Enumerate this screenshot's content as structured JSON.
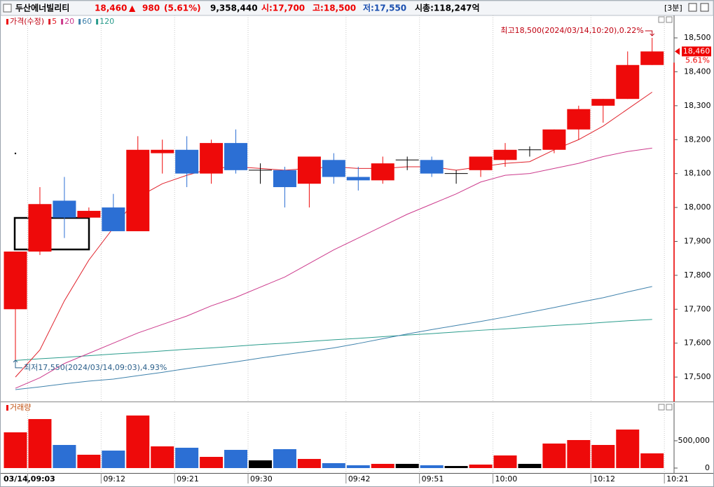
{
  "header": {
    "name": "두산에너빌리티",
    "price": "18,460",
    "arrow": "▲",
    "change": "980",
    "change_pct": "(5.61%)",
    "volume": "9,358,440",
    "open": "시:17,700",
    "high": "고:18,500",
    "low": "저:17,550",
    "market_cap": "시총:118,247억",
    "interval": "[3분]"
  },
  "chart_data": [
    {
      "type": "candlestick",
      "legend_title": "가격(수정)",
      "open": [
        17700,
        17870,
        18020,
        17970,
        18000,
        17930,
        18160,
        18170,
        18100,
        18190,
        18110,
        18110,
        18070,
        18140,
        18090,
        18080,
        18140,
        18140,
        18100,
        18110,
        18140,
        18170,
        18170,
        18230,
        18300,
        18320,
        18420,
        null
      ],
      "high": [
        17870,
        18060,
        18090,
        18000,
        18040,
        18210,
        18200,
        18210,
        18200,
        18230,
        18130,
        18120,
        18150,
        18160,
        18120,
        18150,
        18150,
        18150,
        18110,
        18150,
        18190,
        18180,
        18230,
        18300,
        18320,
        18460,
        18500,
        null
      ],
      "low": [
        17550,
        17860,
        17910,
        17970,
        17930,
        17930,
        18100,
        18060,
        18070,
        18100,
        18070,
        18000,
        18000,
        18070,
        18050,
        18070,
        18110,
        18090,
        18070,
        18090,
        18120,
        18150,
        18160,
        18200,
        18250,
        18320,
        18420,
        null
      ],
      "close": [
        17870,
        18010,
        17970,
        17990,
        17930,
        18170,
        18170,
        18100,
        18190,
        18110,
        18110,
        18060,
        18150,
        18090,
        18080,
        18130,
        18140,
        18100,
        18100,
        18150,
        18170,
        18170,
        18230,
        18290,
        18320,
        18420,
        18460,
        null
      ],
      "up_color": "#ee0a0a",
      "down_color": "#2c6fd4",
      "flat_color": "#000000",
      "series": [
        {
          "name": "5",
          "color": "#e0202a",
          "values": [
            17500,
            17580,
            17725,
            17845,
            17940,
            18030,
            18070,
            18095,
            18115,
            18120,
            18115,
            18110,
            18115,
            18120,
            18115,
            18115,
            18120,
            18120,
            18110,
            18120,
            18130,
            18135,
            18170,
            18200,
            18240,
            18290,
            18340,
            null
          ]
        },
        {
          "name": "20",
          "color": "#cc3a8c",
          "values": [
            17467,
            17498,
            17540,
            17570,
            17600,
            17630,
            17655,
            17680,
            17710,
            17735,
            17765,
            17795,
            17835,
            17875,
            17910,
            17945,
            17980,
            18010,
            18040,
            18075,
            18095,
            18100,
            18115,
            18130,
            18150,
            18165,
            18175,
            null
          ]
        },
        {
          "name": "60",
          "color": "#3f82ac",
          "values": [
            17463,
            17471,
            17480,
            17488,
            17494,
            17504,
            17514,
            17525,
            17535,
            17545,
            17556,
            17566,
            17576,
            17586,
            17599,
            17613,
            17627,
            17640,
            17652,
            17664,
            17677,
            17691,
            17705,
            17720,
            17734,
            17751,
            17767,
            null
          ]
        },
        {
          "name": "120",
          "color": "#2a9c8c",
          "values": [
            17549,
            17554,
            17558,
            17563,
            17568,
            17572,
            17577,
            17582,
            17586,
            17591,
            17596,
            17600,
            17605,
            17610,
            17614,
            17619,
            17624,
            17628,
            17633,
            17638,
            17642,
            17647,
            17652,
            17656,
            17661,
            17666,
            17670,
            null
          ]
        }
      ],
      "ylim": [
        17430,
        18560
      ],
      "yticks": [
        {
          "value": 17500,
          "label": "17,500"
        },
        {
          "value": 17600,
          "label": "17,600"
        },
        {
          "value": 17700,
          "label": "17,700"
        },
        {
          "value": 17800,
          "label": "17,800"
        },
        {
          "value": 17900,
          "label": "17,900"
        },
        {
          "value": 18000,
          "label": "18,000"
        },
        {
          "value": 18100,
          "label": "18,100"
        },
        {
          "value": 18200,
          "label": "18,200"
        },
        {
          "value": 18300,
          "label": "18,300"
        },
        {
          "value": 18400,
          "label": "18,400"
        },
        {
          "value": 18500,
          "label": "18,500"
        }
      ],
      "last_price": {
        "value": 18460,
        "label": "18,460"
      },
      "last_change": "5.61%",
      "annotations": [
        "최고18,500(2024/03/14,10:20),0.22%",
        "최저17,550(2024/03/14,09:03),4.93%"
      ],
      "grid": true
    },
    {
      "type": "bar",
      "title": "거래량",
      "categories": [
        null,
        "03/14,09:03",
        null,
        null,
        "09:12",
        null,
        null,
        "09:21",
        null,
        null,
        "09:30",
        null,
        null,
        null,
        "09:42",
        null,
        null,
        "09:51",
        null,
        null,
        "10:00",
        null,
        null,
        null,
        "10:12",
        null,
        null,
        "10:21"
      ],
      "values": [
        654000,
        897000,
        423000,
        244000,
        320000,
        962000,
        397000,
        372000,
        205000,
        333000,
        141000,
        346000,
        167000,
        90000,
        51000,
        77000,
        77000,
        51000,
        38000,
        64000,
        231000,
        77000,
        449000,
        513000,
        423000,
        705000,
        269000,
        null
      ],
      "ylim": [
        -90000,
        1090000
      ],
      "yticks": [
        0,
        {
          "value": 500000,
          "label": "500,000"
        }
      ]
    }
  ]
}
